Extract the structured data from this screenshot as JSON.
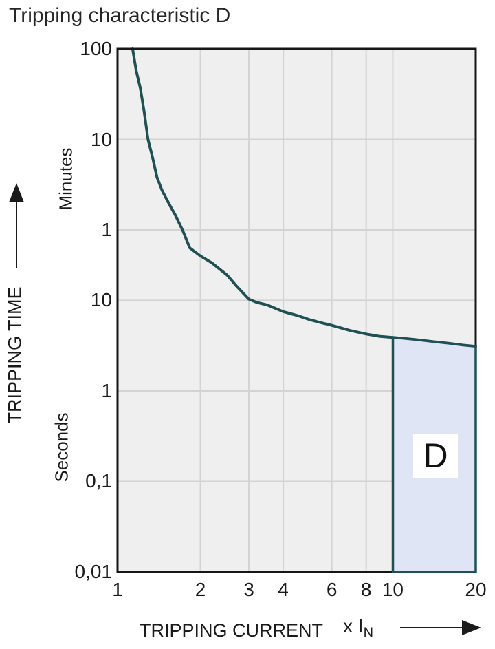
{
  "title": "Tripping characteristic D",
  "colors": {
    "curve": "#1d5153",
    "region_fill": "#dfe5f4",
    "region_border": "#1d5153",
    "plot_bg": "#efefef",
    "grid": "#d3d3d3",
    "frame": "#161616",
    "text": "#1a1a1a"
  },
  "chart_data": {
    "type": "line",
    "title": "Tripping characteristic D",
    "x_axis": {
      "label": "TRIPPING CURRENT",
      "unit_main": "x I",
      "unit_sub": "N",
      "scale": "log",
      "range": [
        1,
        20
      ],
      "ticks": [
        {
          "v": 1,
          "label": "1"
        },
        {
          "v": 2,
          "label": "2"
        },
        {
          "v": 3,
          "label": "3"
        },
        {
          "v": 4,
          "label": "4"
        },
        {
          "v": 6,
          "label": "6"
        },
        {
          "v": 8,
          "label": "8"
        },
        {
          "v": 10,
          "label": "10"
        },
        {
          "v": 20,
          "label": "20"
        }
      ]
    },
    "y_axis": {
      "label": "TRIPPING TIME",
      "upper_unit": "Minutes",
      "lower_unit": "Seconds",
      "scale": "log",
      "range_seconds": [
        0.01,
        6000
      ],
      "ticks": [
        {
          "t": 6000,
          "label": "100"
        },
        {
          "t": 600,
          "label": "10"
        },
        {
          "t": 60,
          "label": "1"
        },
        {
          "t": 10,
          "label": "10"
        },
        {
          "t": 1,
          "label": "1"
        },
        {
          "t": 0.1,
          "label": "0,1"
        },
        {
          "t": 0.01,
          "label": "0,01"
        }
      ]
    },
    "series": [
      {
        "name": "D tripping curve",
        "points_x_multiple_of_In_vs_seconds": [
          [
            1.134,
            6000
          ],
          [
            1.17,
            3400
          ],
          [
            1.21,
            2200
          ],
          [
            1.25,
            1200
          ],
          [
            1.29,
            600
          ],
          [
            1.34,
            380
          ],
          [
            1.39,
            230
          ],
          [
            1.45,
            165
          ],
          [
            1.5,
            135
          ],
          [
            1.56,
            108
          ],
          [
            1.62,
            88
          ],
          [
            1.68,
            70
          ],
          [
            1.73,
            58
          ],
          [
            1.83,
            38
          ],
          [
            2.0,
            31
          ],
          [
            2.2,
            26
          ],
          [
            2.5,
            19
          ],
          [
            2.7,
            14.5
          ],
          [
            3.0,
            10.3
          ],
          [
            3.2,
            9.5
          ],
          [
            3.5,
            8.9
          ],
          [
            4.0,
            7.5
          ],
          [
            4.5,
            6.8
          ],
          [
            5.0,
            6.1
          ],
          [
            5.5,
            5.65
          ],
          [
            6.0,
            5.3
          ],
          [
            7.0,
            4.65
          ],
          [
            8.0,
            4.25
          ],
          [
            9.0,
            4.0
          ],
          [
            10.0,
            3.9
          ],
          [
            11.0,
            3.8
          ],
          [
            12.0,
            3.7
          ],
          [
            14.0,
            3.5
          ],
          [
            16.0,
            3.35
          ],
          [
            18.0,
            3.2
          ],
          [
            20.0,
            3.1
          ]
        ]
      }
    ],
    "region": {
      "label": "D",
      "x_from": 10,
      "x_to": 20,
      "t_bottom": 0.01,
      "top_points": [
        [
          10,
          3.9
        ],
        [
          11,
          3.8
        ],
        [
          12,
          3.7
        ],
        [
          14,
          3.5
        ],
        [
          16,
          3.35
        ],
        [
          18,
          3.2
        ],
        [
          20,
          3.1
        ]
      ]
    },
    "grid": true,
    "legend": false
  }
}
